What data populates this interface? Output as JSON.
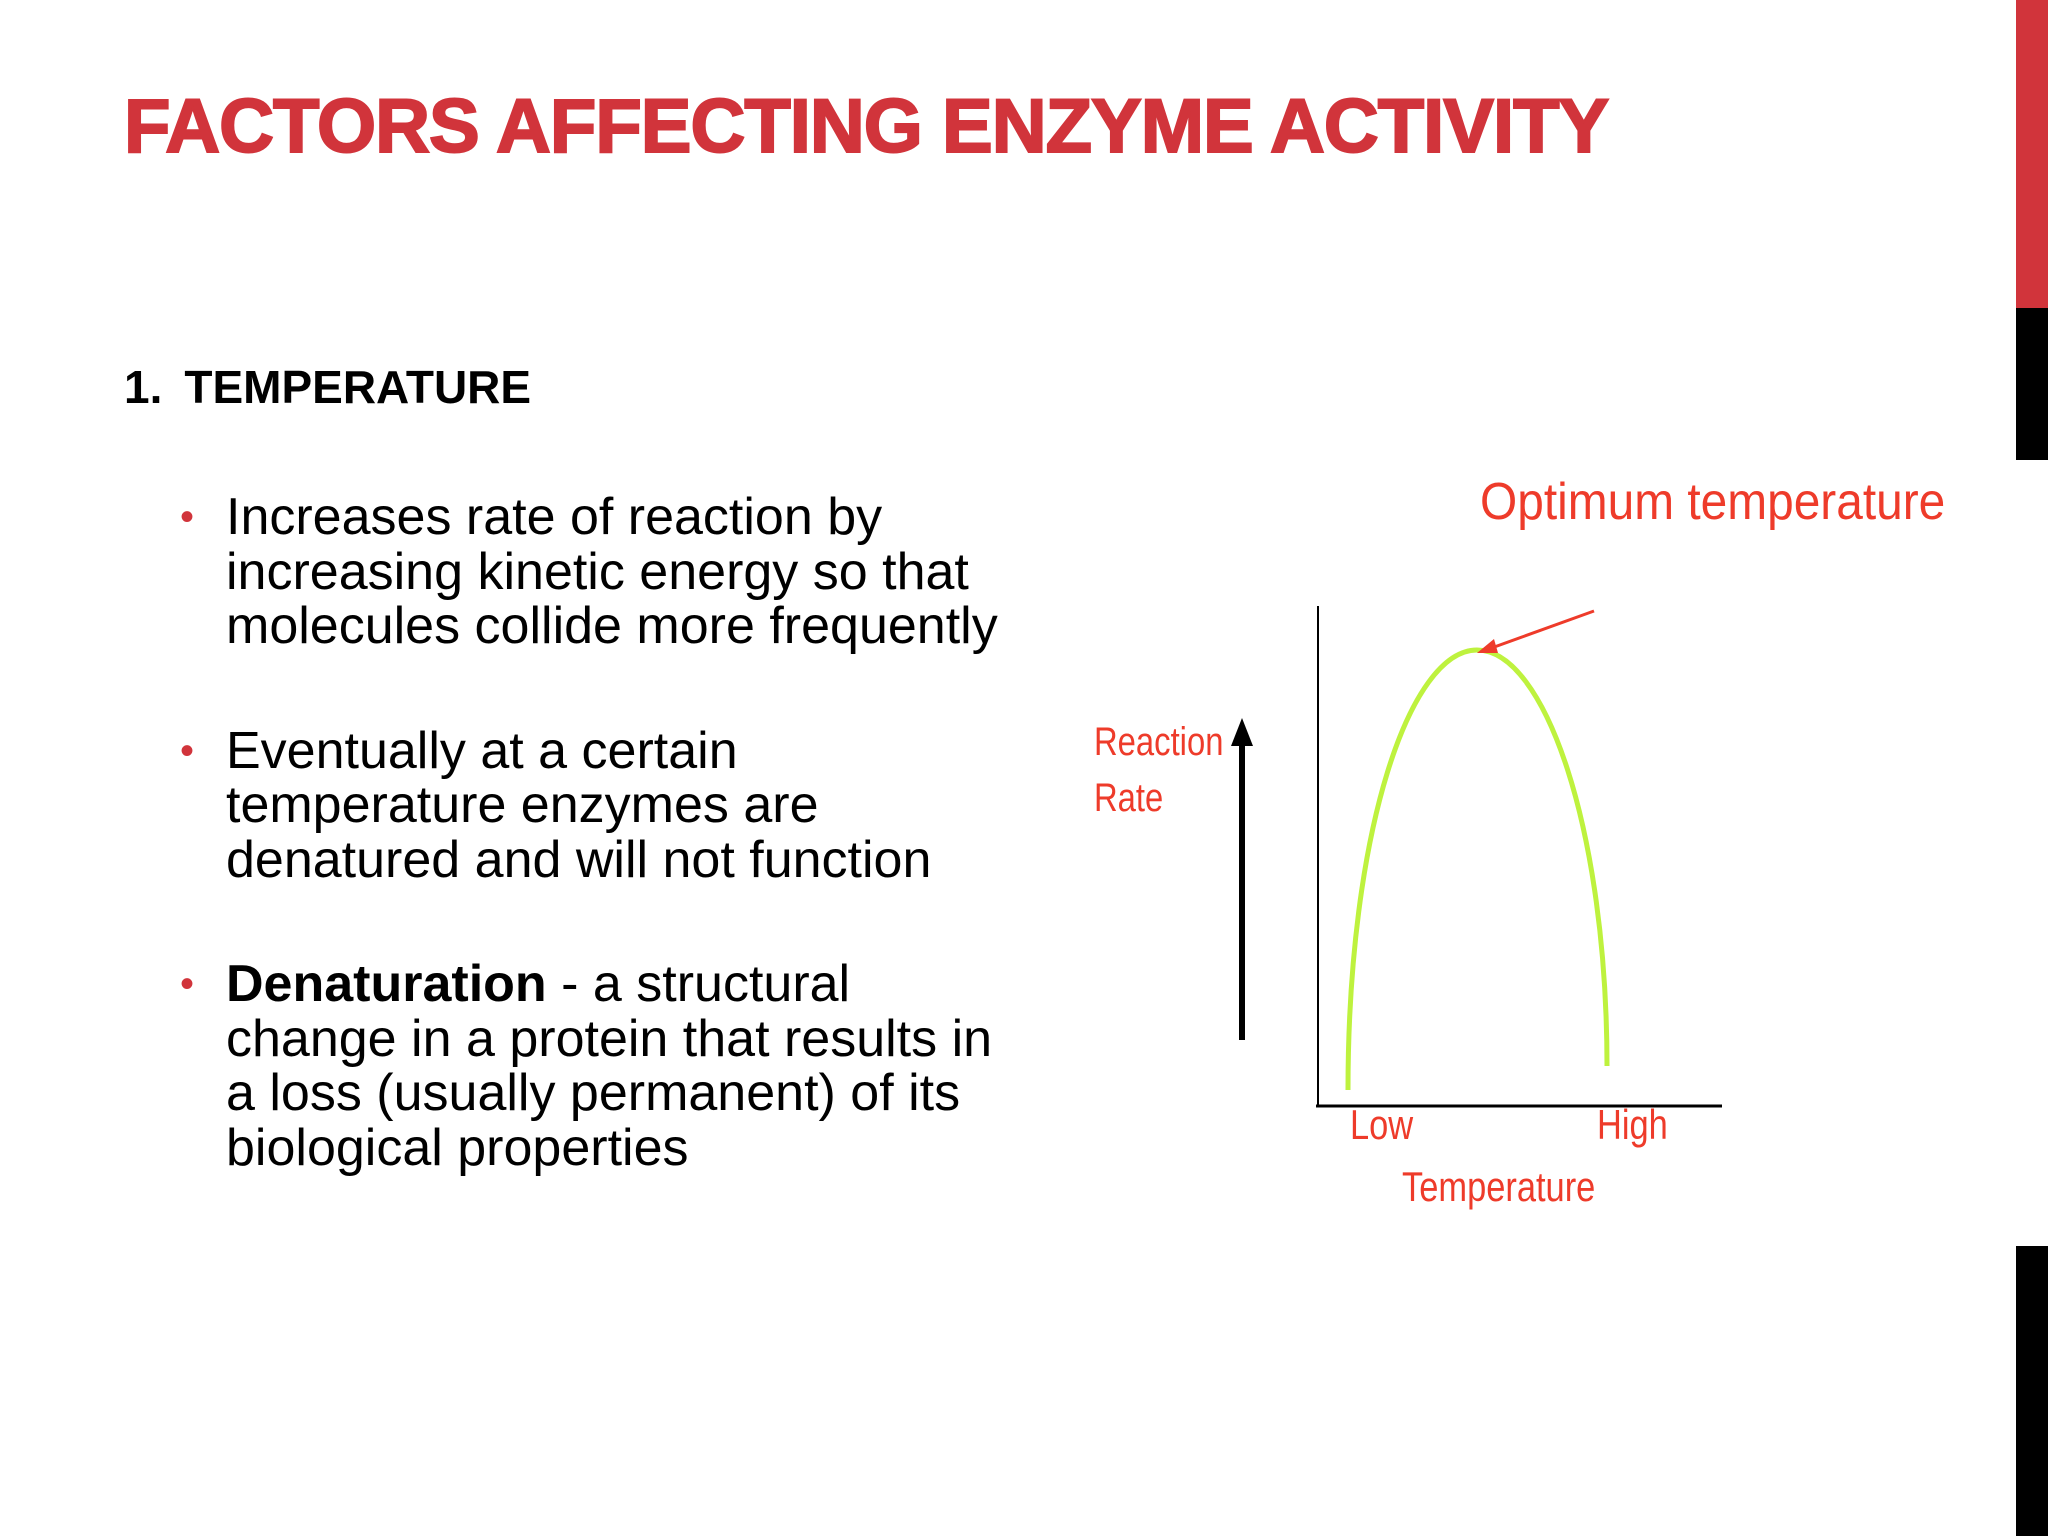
{
  "slide": {
    "title": "FACTORS AFFECTING ENZYME ACTIVITY",
    "section_number": "1.",
    "section_heading": "TEMPERATURE",
    "bullets": [
      {
        "text": "Increases rate of reaction by increasing kinetic energy so that molecules collide more frequently"
      },
      {
        "text": "Eventually at a certain temperature enzymes are denatured and will not function"
      },
      {
        "term": "Denaturation",
        "text": " - a structural change in a protein that results in a loss (usually permanent) of its biological properties"
      }
    ]
  },
  "diagram": {
    "annotation": "Optimum temperature",
    "y_label_line1": "Reaction",
    "y_label_line2": "Rate",
    "x_tick_low": "Low",
    "x_tick_high": "High",
    "x_label": "Temperature",
    "curve_color": "#bef23e",
    "label_color": "#ee3b2a"
  },
  "colors": {
    "accent": "#d1343b",
    "text": "#000000",
    "side_bar_dark": "#000000"
  }
}
